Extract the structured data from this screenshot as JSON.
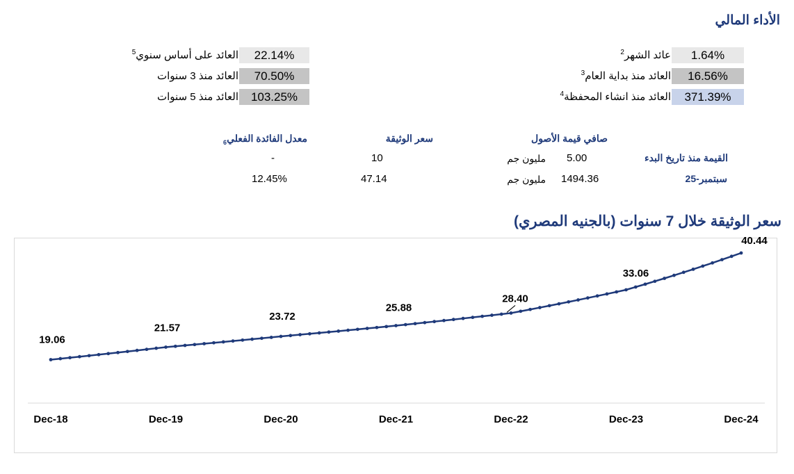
{
  "title": "الأداء المالي",
  "returns_right": [
    {
      "label": "عائد الشهر",
      "note": "2",
      "value": "1.64%"
    },
    {
      "label": "العائد منذ بداية العام",
      "note": "3",
      "value": "16.56%"
    },
    {
      "label": "العائد منذ انشاء المحفظة",
      "note": "4",
      "value": "371.39%"
    }
  ],
  "returns_left": [
    {
      "label": "العائد على أساس سنوي",
      "note": "5",
      "value": "22.14%"
    },
    {
      "label": "العائد منذ 3 سنوات",
      "note": "",
      "value": "70.50%"
    },
    {
      "label": "العائد منذ 5 سنوات",
      "note": "",
      "value": "103.25%"
    }
  ],
  "table": {
    "headers": {
      "nav": "صافي قيمة الأصول",
      "price": "سعر الوثيقة",
      "rate": "معدل الفائدة الفعلي",
      "rate_note": "6"
    },
    "rows": [
      {
        "label": "القيمة منذ تاريخ البدء",
        "nav": "5.00",
        "unit": "مليون جم",
        "price": "10",
        "rate": "-"
      },
      {
        "label": "سبتمبر-25",
        "nav": "1494.36",
        "unit": "مليون جم",
        "price": "47.14",
        "rate": "12.45%"
      }
    ]
  },
  "chart_title": "سعر الوثيقة خلال 7 سنوات (بالجنيه المصري)",
  "chart_data": {
    "type": "line",
    "x_tick_labels": [
      "Dec-18",
      "Dec-19",
      "Dec-20",
      "Dec-21",
      "Dec-22",
      "Dec-23",
      "Dec-24"
    ],
    "labeled_points": [
      {
        "x": "Dec-18",
        "y": 19.06,
        "label": "19.06"
      },
      {
        "x": "Dec-19",
        "y": 21.57,
        "label": "21.57"
      },
      {
        "x": "Dec-20",
        "y": 23.72,
        "label": "23.72"
      },
      {
        "x": "Dec-21",
        "y": 25.88,
        "label": "25.88"
      },
      {
        "x": "Dec-22",
        "y": 28.4,
        "label": "28.40"
      },
      {
        "x": "Dec-23",
        "y": 33.06,
        "label": "33.06"
      },
      {
        "x": "Dec-24",
        "y": 40.44,
        "label": "40.44"
      }
    ],
    "points_per_year": 12,
    "ylim": [
      0,
      45
    ],
    "grid": false,
    "legend": "none",
    "color": "#1f3a7a"
  }
}
